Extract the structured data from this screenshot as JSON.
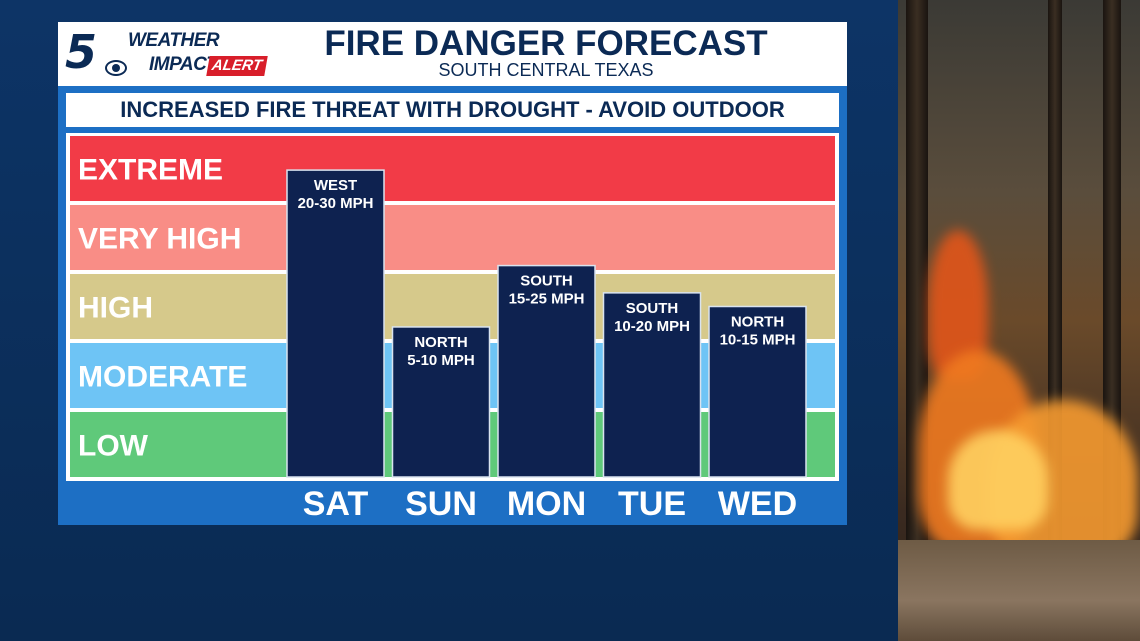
{
  "header": {
    "logo_number": "5",
    "logo_weather": "WEATHER",
    "logo_impact": "IMPACT",
    "logo_alert": "ALERT",
    "title": "FIRE DANGER FORECAST",
    "subtitle": "SOUTH CENTRAL TEXAS"
  },
  "banner": "INCREASED FIRE THREAT WITH DROUGHT - AVOID OUTDOOR BURNING",
  "colors": {
    "extreme": "#f23b47",
    "very_high": "#f98d86",
    "high": "#d6c98b",
    "moderate": "#6ec4f5",
    "low": "#5fc97a",
    "bar": "#0e2250"
  },
  "chart_data": {
    "type": "bar",
    "title": "FIRE DANGER FORECAST",
    "subtitle": "SOUTH CENTRAL TEXAS",
    "levels": [
      "LOW",
      "MODERATE",
      "HIGH",
      "VERY HIGH",
      "EXTREME"
    ],
    "ylim": [
      0,
      5
    ],
    "categories": [
      "SAT",
      "SUN",
      "MON",
      "TUE",
      "WED"
    ],
    "values": [
      4.5,
      2.2,
      3.1,
      2.7,
      2.5
    ],
    "wind_direction": [
      "WEST",
      "NORTH",
      "SOUTH",
      "SOUTH",
      "NORTH"
    ],
    "wind_speed": [
      "20-30 MPH",
      "5-10 MPH",
      "15-25 MPH",
      "10-20 MPH",
      "10-15 MPH"
    ],
    "legend": "none",
    "grid": false
  }
}
